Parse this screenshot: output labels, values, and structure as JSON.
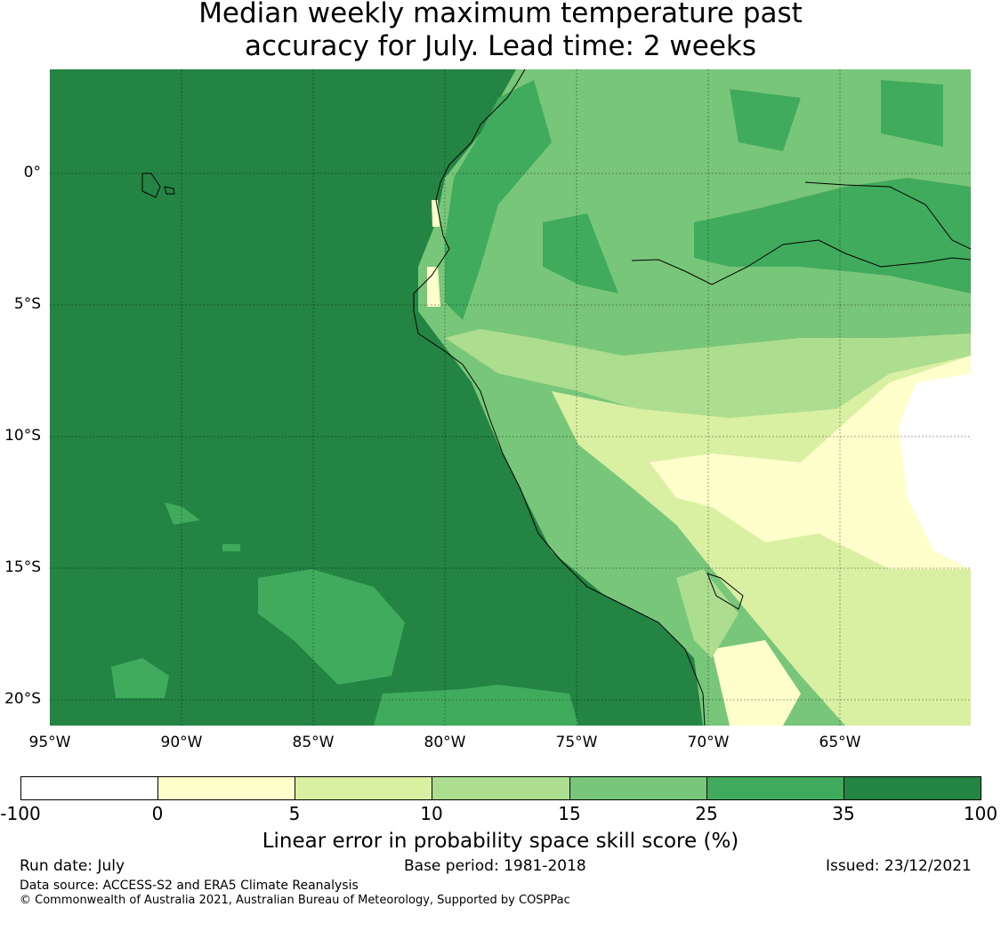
{
  "title": {
    "line1": "Median weekly maximum temperature past",
    "line2": "accuracy for July. Lead time: 2 weeks"
  },
  "map": {
    "lat_labels": [
      "0°",
      "5°S",
      "10°S",
      "15°S",
      "20°S"
    ],
    "lon_labels": [
      "95°W",
      "90°W",
      "85°W",
      "80°W",
      "75°W",
      "70°W",
      "65°W"
    ],
    "colors": {
      "sea_dark": "#238443",
      "c25_35": "#41ab5d",
      "c15_25": "#78c679",
      "c10_15": "#addd8e",
      "c5_10": "#d9f0a3",
      "c0_5": "#ffffcc",
      "neg": "#ffffff"
    }
  },
  "legend": {
    "ticks": [
      "-100",
      "0",
      "5",
      "10",
      "15",
      "25",
      "35",
      "100"
    ],
    "colors": [
      "#ffffff",
      "#ffffcc",
      "#d9f0a3",
      "#addd8e",
      "#78c679",
      "#41ab5d",
      "#238443"
    ],
    "label": "Linear error in probability space skill score (%)"
  },
  "footer": {
    "run_date": "Run date: July",
    "base_period": "Base period: 1981-2018",
    "issued": "Issued: 23/12/2021",
    "data_source": "Data source: ACCESS-S2 and ERA5 Climate Reanalysis",
    "copyright": "© Commonwealth of Australia 2021, Australian Bureau of Meteorology, Supported by COSPPac"
  }
}
